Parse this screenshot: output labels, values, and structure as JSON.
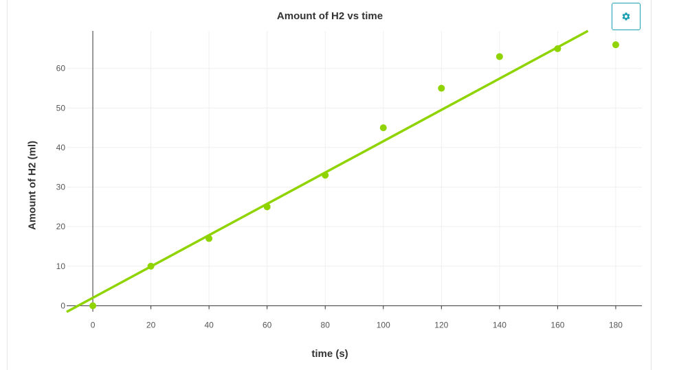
{
  "chart_data": {
    "type": "scatter",
    "title": "Amount of H2 vs time",
    "xlabel": "time (s)",
    "ylabel": "Amount of H2 (ml)",
    "xlim": [
      -9,
      189
    ],
    "ylim": [
      -1.5,
      69.5
    ],
    "x_ticks": [
      0,
      20,
      40,
      60,
      80,
      100,
      120,
      140,
      160,
      180
    ],
    "y_ticks": [
      0,
      10,
      20,
      30,
      40,
      50,
      60
    ],
    "grid": true,
    "color": "#8fd400",
    "series": [
      {
        "x": [
          0,
          20,
          40,
          60,
          80,
          100,
          120,
          140,
          160,
          180
        ],
        "y": [
          0,
          10,
          17,
          25,
          33,
          45,
          55,
          63,
          65,
          66
        ]
      }
    ],
    "trendline": {
      "type": "linear",
      "slope": 0.396,
      "intercept": 2.0
    }
  },
  "toolbar": {
    "settings_icon": "gear-icon",
    "accent_color": "#1a9fb4"
  }
}
